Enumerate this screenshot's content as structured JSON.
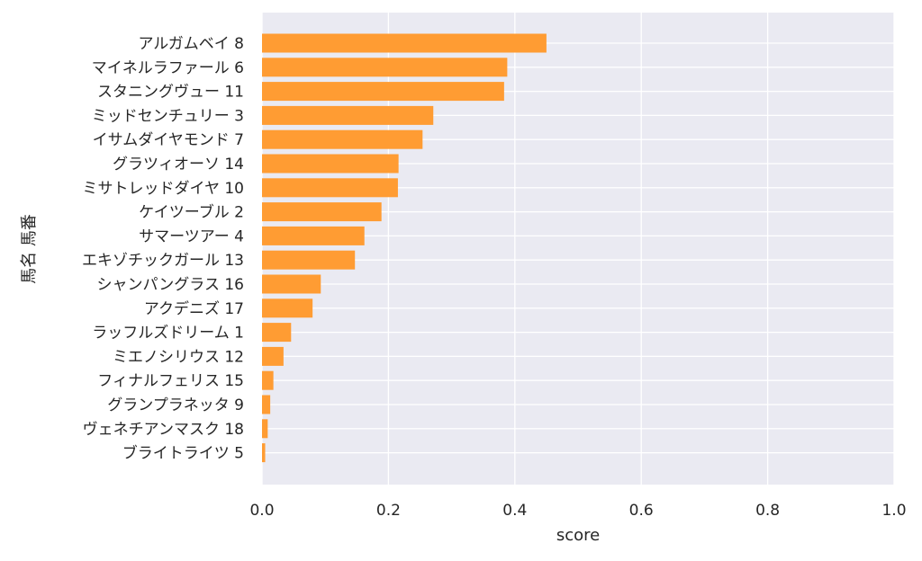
{
  "chart_data": {
    "type": "bar",
    "orientation": "horizontal",
    "title": "",
    "xlabel": "score",
    "ylabel": "馬名 馬番",
    "xlim": [
      0.0,
      1.0
    ],
    "xticks": [
      0.0,
      0.2,
      0.4,
      0.6,
      0.8,
      1.0
    ],
    "xtick_labels": [
      "0.0",
      "0.2",
      "0.4",
      "0.6",
      "0.8",
      "1.0"
    ],
    "grid": true,
    "legend": "none",
    "bar_color": "#ff9c33",
    "background_color": "#eaeaf2",
    "categories": [
      "アルガムベイ 8",
      "マイネルラファール 6",
      "スタニングヴュー 11",
      "ミッドセンチュリー 3",
      "イサムダイヤモンド 7",
      "グラツィオーソ 14",
      "ミサトレッドダイヤ 10",
      "ケイツーブル 2",
      "サマーツアー 4",
      "エキゾチックガール 13",
      "シャンパングラス 16",
      "アクデニズ 17",
      "ラッフルズドリーム 1",
      "ミエノシリウス 12",
      "フィナルフェリス 15",
      "グランプラネッタ 9",
      "ヴェネチアンマスク 18",
      "ブライトライツ 5"
    ],
    "values": [
      0.45,
      0.388,
      0.383,
      0.271,
      0.254,
      0.216,
      0.215,
      0.189,
      0.162,
      0.147,
      0.093,
      0.08,
      0.046,
      0.034,
      0.018,
      0.013,
      0.009,
      0.005
    ]
  }
}
